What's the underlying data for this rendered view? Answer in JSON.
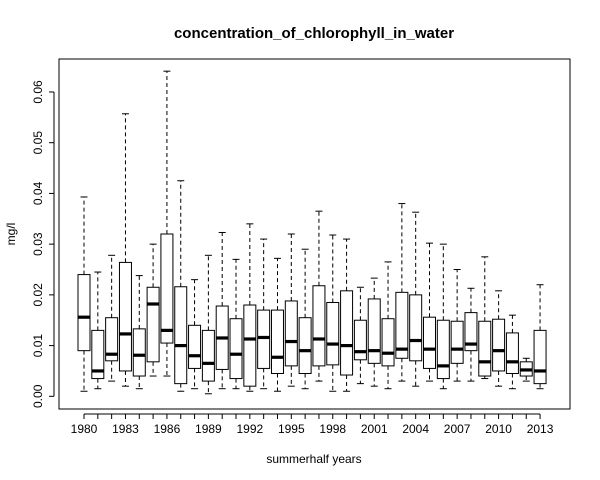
{
  "chart_data": {
    "type": "boxplot",
    "title": "concentration_of_chlorophyll_in_water",
    "xlabel": "summerhalf years",
    "ylabel": "mg/l",
    "ylim": [
      -0.0025,
      0.0665
    ],
    "yticks": [
      0.0,
      0.01,
      0.02,
      0.03,
      0.04,
      0.05,
      0.06
    ],
    "ytick_labels": [
      "0.00",
      "0.01",
      "0.02",
      "0.03",
      "0.04",
      "0.05",
      "0.06"
    ],
    "categories": [
      "1980",
      "1981",
      "1982",
      "1983",
      "1984",
      "1985",
      "1986",
      "1987",
      "1988",
      "1989",
      "1990",
      "1991",
      "1992",
      "1993",
      "1994",
      "1995",
      "1996",
      "1997",
      "1998",
      "1999",
      "2000",
      "2001",
      "2002",
      "2003",
      "2004",
      "2005",
      "2006",
      "2007",
      "2008",
      "2009",
      "2010",
      "2011",
      "2012",
      "2013"
    ],
    "xtick_labels": [
      "1980",
      "1983",
      "1986",
      "1989",
      "1992",
      "1995",
      "1998",
      "2001",
      "2004",
      "2007",
      "2010",
      "2013"
    ],
    "boxes": [
      {
        "min": 0.001,
        "q1": 0.009,
        "median": 0.0156,
        "q3": 0.024,
        "max": 0.0393
      },
      {
        "min": 0.0015,
        "q1": 0.0035,
        "median": 0.005,
        "q3": 0.013,
        "max": 0.0245
      },
      {
        "min": 0.003,
        "q1": 0.007,
        "median": 0.0083,
        "q3": 0.0155,
        "max": 0.0278
      },
      {
        "min": 0.002,
        "q1": 0.005,
        "median": 0.0123,
        "q3": 0.0264,
        "max": 0.0557
      },
      {
        "min": 0.0015,
        "q1": 0.004,
        "median": 0.0081,
        "q3": 0.0133,
        "max": 0.0238
      },
      {
        "min": 0.004,
        "q1": 0.0068,
        "median": 0.0182,
        "q3": 0.0215,
        "max": 0.03
      },
      {
        "min": 0.004,
        "q1": 0.0105,
        "median": 0.013,
        "q3": 0.032,
        "max": 0.0641
      },
      {
        "min": 0.001,
        "q1": 0.0025,
        "median": 0.01,
        "q3": 0.0216,
        "max": 0.0425
      },
      {
        "min": 0.0015,
        "q1": 0.0055,
        "median": 0.008,
        "q3": 0.014,
        "max": 0.023
      },
      {
        "min": 0.0005,
        "q1": 0.003,
        "median": 0.0065,
        "q3": 0.013,
        "max": 0.0278
      },
      {
        "min": 0.0015,
        "q1": 0.0053,
        "median": 0.0115,
        "q3": 0.0178,
        "max": 0.0323
      },
      {
        "min": 0.0015,
        "q1": 0.0035,
        "median": 0.0083,
        "q3": 0.0153,
        "max": 0.027
      },
      {
        "min": 0.001,
        "q1": 0.002,
        "median": 0.0113,
        "q3": 0.018,
        "max": 0.034
      },
      {
        "min": 0.0015,
        "q1": 0.0055,
        "median": 0.0116,
        "q3": 0.017,
        "max": 0.031
      },
      {
        "min": 0.001,
        "q1": 0.0045,
        "median": 0.0077,
        "q3": 0.017,
        "max": 0.0272
      },
      {
        "min": 0.002,
        "q1": 0.006,
        "median": 0.0108,
        "q3": 0.0188,
        "max": 0.032
      },
      {
        "min": 0.0015,
        "q1": 0.0045,
        "median": 0.009,
        "q3": 0.0155,
        "max": 0.029
      },
      {
        "min": 0.003,
        "q1": 0.006,
        "median": 0.0113,
        "q3": 0.0218,
        "max": 0.0365
      },
      {
        "min": 0.001,
        "q1": 0.0062,
        "median": 0.0103,
        "q3": 0.0185,
        "max": 0.0318
      },
      {
        "min": 0.001,
        "q1": 0.0042,
        "median": 0.01,
        "q3": 0.0208,
        "max": 0.031
      },
      {
        "min": 0.0025,
        "q1": 0.0072,
        "median": 0.0088,
        "q3": 0.015,
        "max": 0.0215
      },
      {
        "min": 0.002,
        "q1": 0.0065,
        "median": 0.009,
        "q3": 0.0192,
        "max": 0.0233
      },
      {
        "min": 0.0015,
        "q1": 0.006,
        "median": 0.0085,
        "q3": 0.0153,
        "max": 0.0265
      },
      {
        "min": 0.003,
        "q1": 0.0075,
        "median": 0.0093,
        "q3": 0.0205,
        "max": 0.038
      },
      {
        "min": 0.002,
        "q1": 0.007,
        "median": 0.011,
        "q3": 0.02,
        "max": 0.0363
      },
      {
        "min": 0.003,
        "q1": 0.0055,
        "median": 0.0093,
        "q3": 0.0156,
        "max": 0.0302
      },
      {
        "min": 0.0015,
        "q1": 0.0035,
        "median": 0.006,
        "q3": 0.015,
        "max": 0.03
      },
      {
        "min": 0.003,
        "q1": 0.0065,
        "median": 0.0093,
        "q3": 0.0148,
        "max": 0.025
      },
      {
        "min": 0.003,
        "q1": 0.009,
        "median": 0.0103,
        "q3": 0.0165,
        "max": 0.0213
      },
      {
        "min": 0.0035,
        "q1": 0.004,
        "median": 0.0068,
        "q3": 0.0148,
        "max": 0.0275
      },
      {
        "min": 0.002,
        "q1": 0.005,
        "median": 0.009,
        "q3": 0.0152,
        "max": 0.0208
      },
      {
        "min": 0.0015,
        "q1": 0.0045,
        "median": 0.0068,
        "q3": 0.0125,
        "max": 0.016
      },
      {
        "min": 0.003,
        "q1": 0.004,
        "median": 0.0052,
        "q3": 0.0068,
        "max": 0.0075
      },
      {
        "min": 0.0015,
        "q1": 0.0025,
        "median": 0.005,
        "q3": 0.013,
        "max": 0.022
      }
    ],
    "grid": false,
    "legend": "none"
  }
}
